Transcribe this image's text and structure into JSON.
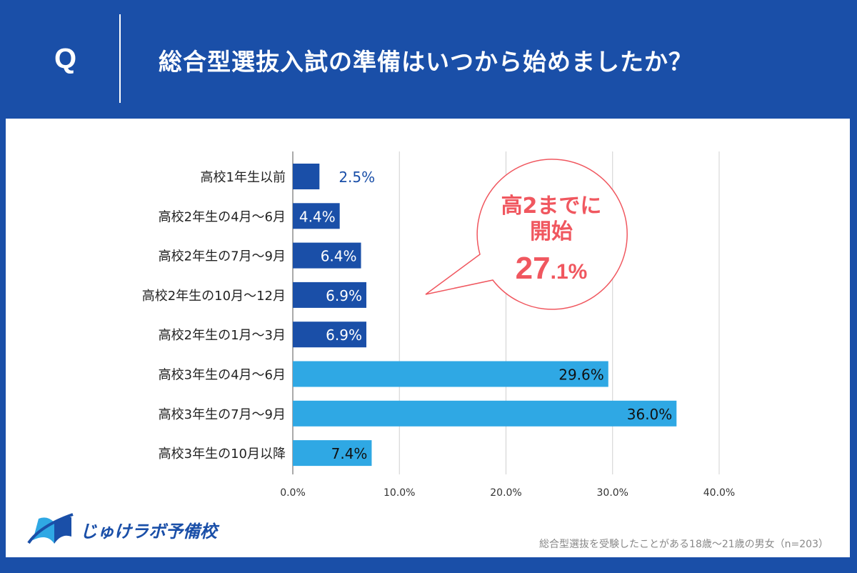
{
  "header": {
    "q": "Q",
    "title": "総合型選抜入試の準備はいつから始めましたか？"
  },
  "chart_data": {
    "type": "bar",
    "orientation": "horizontal",
    "categories": [
      "高校1年生以前",
      "高校2年生の4月～6月",
      "高校2年生の7月～9月",
      "高校2年生の10月～12月",
      "高校2年生の1月～3月",
      "高校3年生の4月～6月",
      "高校3年生の7月～9月",
      "高校3年生の10月以降"
    ],
    "values": [
      2.5,
      4.4,
      6.4,
      6.9,
      6.9,
      29.6,
      36.0,
      7.4
    ],
    "labels": [
      "2.5%",
      "4.4%",
      "6.4%",
      "6.9%",
      "6.9%",
      "29.6%",
      "36.0%",
      "7.4%"
    ],
    "xlim": [
      0,
      40
    ],
    "xticks": [
      "0.0%",
      "10.0%",
      "20.0%",
      "30.0%",
      "40.0%"
    ],
    "grid": true,
    "colors": {
      "grade2_or_before": "#1a4fa8",
      "grade3": "#2fa8e4"
    },
    "annotation": {
      "line1": "高2までに",
      "line2": "開始",
      "value": "27",
      "decimal": ".1%",
      "color": "#f0575f"
    }
  },
  "footer": {
    "logo": "じゅけラボ予備校",
    "note": "総合型選抜を受験したことがある18歳～21歳の男女（n=203）"
  }
}
